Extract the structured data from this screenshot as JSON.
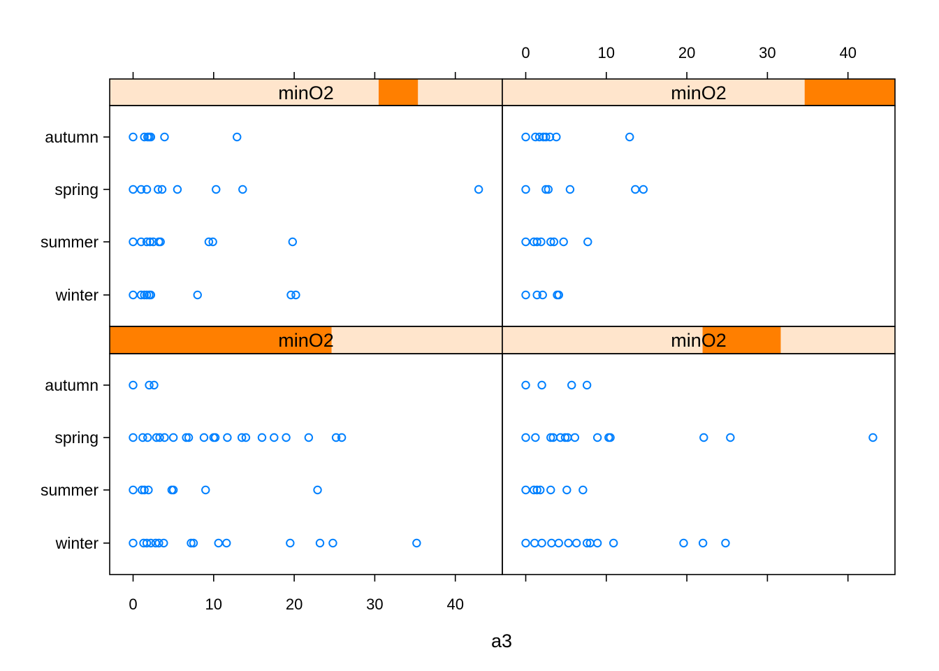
{
  "chart_data": {
    "type": "scatter",
    "title": "",
    "xlabel": "a3",
    "ylabel": "",
    "xlim": [
      -3,
      46
    ],
    "x_ticks": [
      "0",
      "10",
      "20",
      "30",
      "40"
    ],
    "categories": [
      "autumn",
      "spring",
      "summer",
      "winter"
    ],
    "strip_label": "minO2",
    "colors": {
      "strip_bg": "#ffe5cc",
      "strip_fill": "#ff7f00",
      "points": "#0080ff",
      "frame": "#000000"
    },
    "panels": [
      {
        "position": "bottom-left",
        "strip_label": "minO2",
        "strip_range": [
          0.0,
          0.565
        ],
        "points": {
          "autumn": [
            0,
            2,
            2.6
          ],
          "spring": [
            0,
            1.2,
            1.8,
            2.9,
            3.3,
            3.9,
            5,
            6.6,
            6.9,
            8.8,
            10,
            10.2,
            11.7,
            13.5,
            14,
            16,
            17.5,
            19,
            21.8,
            25.2,
            25.9
          ],
          "summer": [
            0,
            1.1,
            1.4,
            1.9,
            4.8,
            5,
            9,
            22.9
          ],
          "winter": [
            0,
            1.3,
            1.7,
            2.2,
            2.8,
            3.2,
            3.8,
            7.2,
            7.5,
            10.6,
            11.6,
            19.5,
            23.2,
            24.8,
            35.2
          ]
        }
      },
      {
        "position": "bottom-right",
        "strip_label": "minO2",
        "strip_range": [
          0.51,
          0.709
        ],
        "points": {
          "autumn": [
            0,
            2,
            5.7,
            7.6
          ],
          "spring": [
            0,
            1.2,
            3.1,
            3.4,
            4.3,
            4.9,
            5.2,
            6.1,
            8.9,
            10.3,
            10.5,
            22.1,
            25.4,
            43.1
          ],
          "summer": [
            0,
            1,
            1.4,
            1.8,
            3.1,
            5.1,
            7.1
          ],
          "winter": [
            0,
            1.1,
            2,
            3.2,
            4.1,
            5.3,
            6.3,
            7.6,
            8,
            8.9,
            10.9,
            19.6,
            22,
            24.8
          ]
        }
      },
      {
        "position": "top-left",
        "strip_label": "minO2",
        "strip_range": [
          0.685,
          0.785
        ],
        "points": {
          "autumn": [
            0,
            1.4,
            1.8,
            2,
            2.2,
            3.9,
            12.9
          ],
          "spring": [
            0,
            1,
            1.7,
            3.1,
            3.6,
            5.5,
            10.3,
            13.6,
            42.9
          ],
          "summer": [
            0,
            1,
            1.7,
            2.1,
            2.5,
            3.2,
            3.4,
            9.4,
            9.9,
            19.8
          ],
          "winter": [
            0,
            1,
            1.4,
            1.7,
            2,
            2.2,
            8,
            19.6,
            20.2
          ]
        }
      },
      {
        "position": "top-right",
        "strip_label": "minO2",
        "strip_range": [
          0.77,
          1.0
        ],
        "points": {
          "autumn": [
            0,
            1.2,
            1.7,
            2.2,
            2.5,
            3,
            3.8,
            12.9
          ],
          "spring": [
            0,
            2.5,
            2.8,
            5.5,
            13.6,
            14.6
          ],
          "summer": [
            0,
            1,
            1.4,
            1.9,
            3.1,
            3.5,
            4.7,
            7.7
          ],
          "winter": [
            0,
            1.4,
            2.1,
            3.9,
            4.1
          ]
        }
      }
    ],
    "grid": false,
    "legend": "none"
  }
}
